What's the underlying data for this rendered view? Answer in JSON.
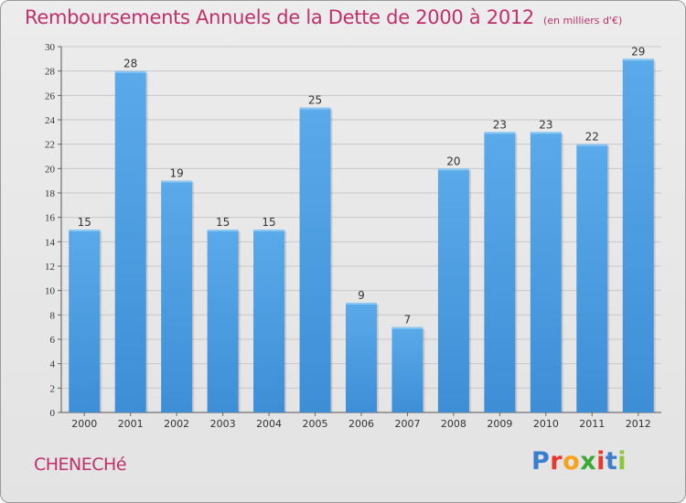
{
  "header": {
    "title": "Remboursements Annuels de la Dette de 2000 à 2012",
    "unit": "(en milliers d'€)"
  },
  "footer": {
    "commune": "CHENECHé",
    "brand_letters": [
      "P",
      "r",
      "o",
      "x",
      "i",
      "t",
      "i"
    ],
    "brand_colors": [
      "#3a7fcf",
      "#e8392c",
      "#f6a21b",
      "#3aaa35",
      "#e8392c",
      "#3a7fcf",
      "#8cc63f"
    ]
  },
  "chart_data": {
    "type": "bar",
    "title": "Remboursements Annuels de la Dette de 2000 à 2012",
    "xlabel": "",
    "ylabel": "",
    "categories": [
      "2000",
      "2001",
      "2002",
      "2003",
      "2004",
      "2005",
      "2006",
      "2007",
      "2008",
      "2009",
      "2010",
      "2011",
      "2012"
    ],
    "values": [
      15,
      28,
      19,
      15,
      15,
      25,
      9,
      7,
      20,
      23,
      23,
      22,
      29
    ],
    "ylim": [
      0,
      30
    ],
    "yticks": [
      0,
      2,
      4,
      6,
      8,
      10,
      12,
      14,
      16,
      18,
      20,
      22,
      24,
      26,
      28,
      30
    ],
    "grid": true,
    "bar_color": "#3d8ed6",
    "bar_color_light": "#5aaaea",
    "grid_color": "#c8c8c8",
    "data_labels": true
  }
}
